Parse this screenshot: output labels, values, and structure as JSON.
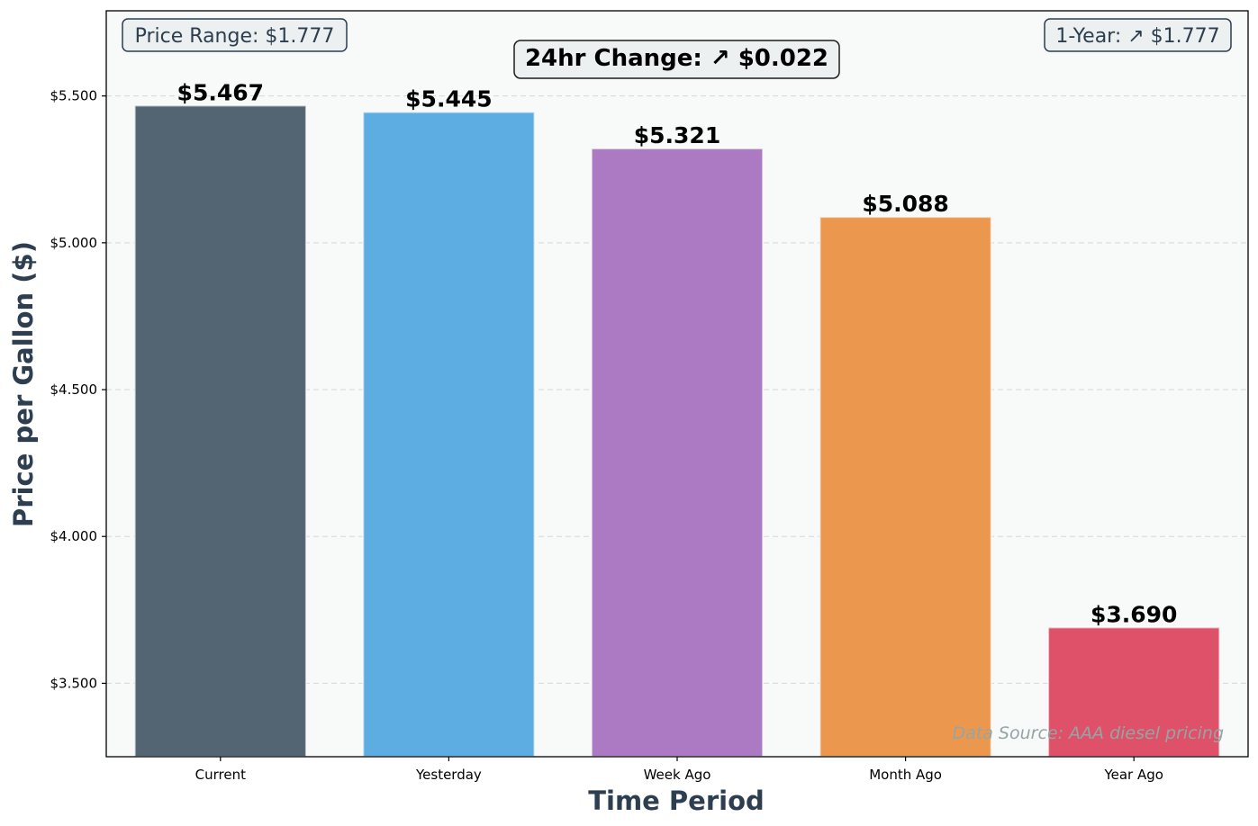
{
  "chart_data": {
    "type": "bar",
    "title": "",
    "xlabel": "Time Period",
    "ylabel": "Price per Gallon ($)",
    "categories": [
      "Current",
      "Yesterday",
      "Week Ago",
      "Month Ago",
      "Year Ago"
    ],
    "values": [
      5.467,
      5.445,
      5.321,
      5.088,
      3.69
    ],
    "value_labels": [
      "$5.467",
      "$5.445",
      "$5.321",
      "$5.088",
      "$3.690"
    ],
    "colors": [
      "#536473",
      "#5dade2",
      "#ab7ac2",
      "#eb984e",
      "#de5169"
    ],
    "ylim": [
      3.25,
      5.79
    ],
    "yticks": [
      3.5,
      4.0,
      4.5,
      5.0,
      5.5
    ],
    "ytick_labels": [
      "$3.500",
      "$4.000",
      "$4.500",
      "$5.000",
      "$5.500"
    ],
    "grid": "horizontal dashed",
    "annotations": {
      "price_range": "Price Range: $1.777",
      "change_24hr": "24hr Change: ↗ $0.022",
      "one_year": "1-Year: ↗ $1.777",
      "source": "Data Source: AAA diesel pricing"
    }
  }
}
